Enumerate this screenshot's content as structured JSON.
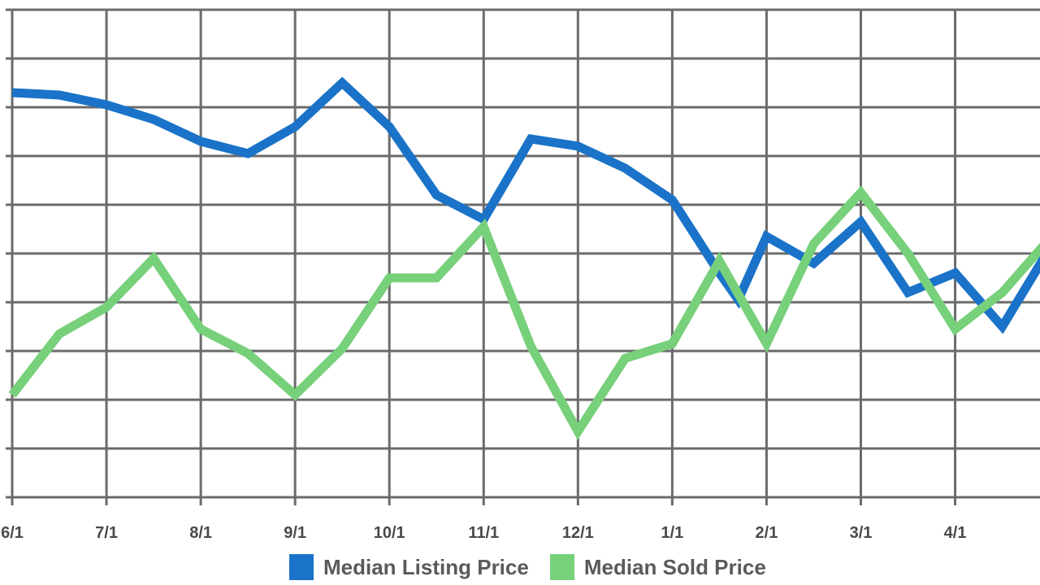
{
  "chart_data": {
    "type": "line",
    "title": "",
    "xlabel": "",
    "ylabel": "",
    "x_tick_labels": [
      "6/1",
      "7/1",
      "8/1",
      "9/1",
      "10/1",
      "11/1",
      "12/1",
      "1/1",
      "2/1",
      "3/1",
      "4/1"
    ],
    "ylim": [
      0,
      10
    ],
    "xlim": [
      0,
      21.8
    ],
    "grid": true,
    "legend_position": "bottom",
    "series": [
      {
        "name": "Median Listing Price",
        "color": "#1a73c8",
        "x": [
          0,
          1,
          2,
          3,
          4,
          5,
          6,
          7,
          8,
          9,
          10,
          11,
          12,
          13,
          14,
          15,
          15.4,
          16,
          17,
          18,
          19,
          20,
          21,
          22
        ],
        "values": [
          8.3,
          8.25,
          8.05,
          7.75,
          7.3,
          7.05,
          7.6,
          8.5,
          7.6,
          6.2,
          5.7,
          7.35,
          7.2,
          6.75,
          6.1,
          4.6,
          4.05,
          5.35,
          4.8,
          5.65,
          4.2,
          4.6,
          3.5,
          5.1
        ]
      },
      {
        "name": "Median Sold Price",
        "color": "#77d07a",
        "x": [
          0,
          1,
          2,
          3,
          4,
          5,
          6,
          7,
          8,
          9,
          10,
          11,
          12,
          13,
          14,
          15,
          16,
          17,
          18,
          19,
          20,
          21,
          22
        ],
        "values": [
          2.1,
          3.35,
          3.9,
          4.9,
          3.45,
          2.95,
          2.1,
          3.05,
          4.5,
          4.5,
          5.55,
          3.1,
          1.35,
          2.85,
          3.15,
          4.85,
          3.15,
          5.2,
          6.25,
          5.0,
          3.45,
          4.2,
          5.3
        ]
      }
    ]
  }
}
